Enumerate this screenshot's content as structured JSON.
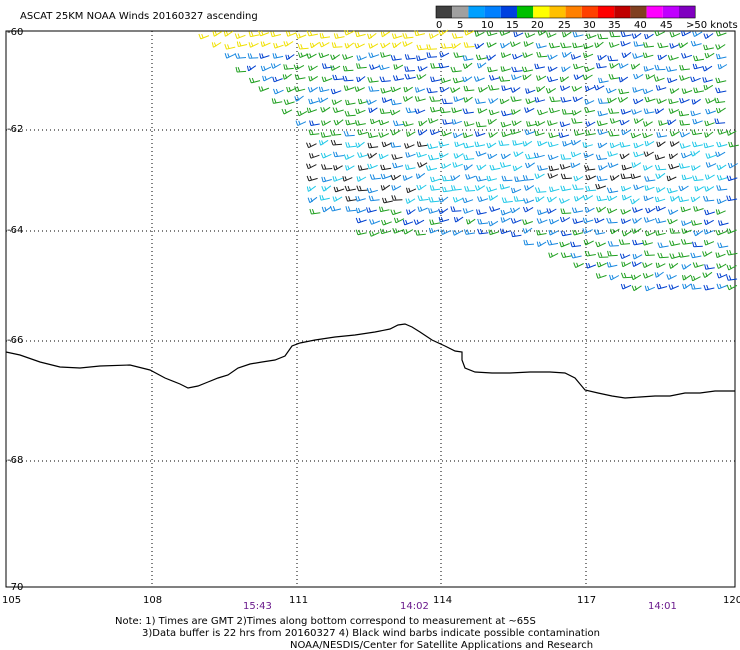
{
  "header": {
    "title": "ASCAT 25KM NOAA Winds 20160327 ascending"
  },
  "legend": {
    "colors": [
      "#404040",
      "#a0a0a0",
      "#00a0ff",
      "#0080ff",
      "#0040e0",
      "#00c000",
      "#ffff00",
      "#ffc000",
      "#ff8000",
      "#ff4000",
      "#ff0000",
      "#c00000",
      "#804020",
      "#ff00ff",
      "#c000ff",
      "#8000c0"
    ],
    "labels": [
      "0",
      "5",
      "10",
      "15",
      "20",
      "25",
      "30",
      "35",
      "40",
      "45",
      ">50 knots"
    ]
  },
  "map": {
    "lon_range": [
      105,
      120
    ],
    "lat_range": [
      -70,
      -60
    ],
    "lon_labels": [
      "105",
      "108",
      "111",
      "114",
      "117",
      "120"
    ],
    "lat_labels": [
      "-60",
      "-62",
      "-64",
      "-66",
      "-68",
      "-70"
    ],
    "times": [
      "15:43",
      "14:02",
      "14:01"
    ]
  },
  "notes": {
    "line1": "Note: 1) Times are GMT 2)Times along bottom correspond to measurement at ~65S",
    "line2": "3)Data buffer is 22 hrs from 20160327 4) Black wind barbs indicate possible contamination",
    "line3": "NOAA/NESDIS/Center for Satellite Applications and Research"
  }
}
